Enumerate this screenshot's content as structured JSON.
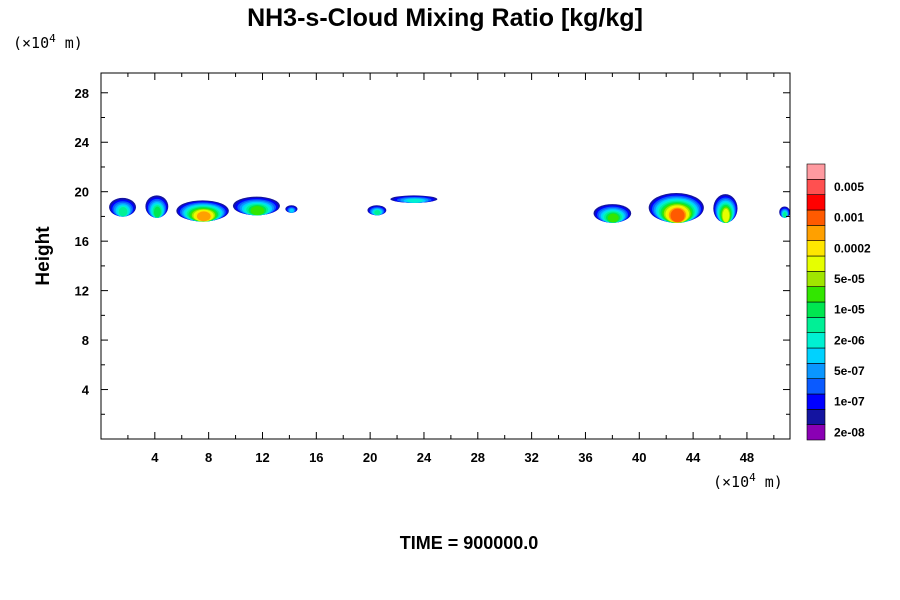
{
  "chart_data": {
    "type": "heatmap",
    "title": "NH3-s-Cloud Mixing Ratio [kg/kg]",
    "ylabel": "Height",
    "x_unit": {
      "prefix": "(×10",
      "exp": "4",
      "suffix": " m)"
    },
    "y_unit": {
      "prefix": "(×10",
      "exp": "4",
      "suffix": " m)"
    },
    "xlim": [
      0,
      51.2
    ],
    "ylim": [
      0,
      29.6
    ],
    "x_ticks": [
      4,
      8,
      12,
      16,
      20,
      24,
      28,
      32,
      36,
      40,
      44,
      48
    ],
    "y_ticks": [
      4,
      8,
      12,
      16,
      20,
      24,
      28
    ],
    "time_label": "TIME = 900000.0",
    "colorbar": {
      "levels": [
        "0.005",
        "0.001",
        "0.0002",
        "5e-05",
        "1e-05",
        "2e-06",
        "5e-07",
        "1e-07",
        "2e-08"
      ],
      "colors": [
        "#8a00b4",
        "#1414a0",
        "#0000ff",
        "#0a5aff",
        "#0a96ff",
        "#00d2ff",
        "#00f0d2",
        "#00f096",
        "#00e650",
        "#32e600",
        "#a0e600",
        "#e6ff00",
        "#ffe600",
        "#ffa000",
        "#ff5a00",
        "#ff0000",
        "#ff5050",
        "#ff9aa0"
      ]
    },
    "clouds": [
      {
        "x0": 0.6,
        "x1": 2.6,
        "ytop": 19.5,
        "ybot": 18.0,
        "max_level": 7
      },
      {
        "x0": 3.3,
        "x1": 5.0,
        "ytop": 19.7,
        "ybot": 17.9,
        "max_level": 8
      },
      {
        "x0": 5.6,
        "x1": 9.5,
        "ytop": 19.3,
        "ybot": 17.6,
        "max_level": 13
      },
      {
        "x0": 9.8,
        "x1": 13.3,
        "ytop": 19.6,
        "ybot": 18.1,
        "max_level": 9
      },
      {
        "x0": 13.7,
        "x1": 14.6,
        "ytop": 18.9,
        "ybot": 18.3,
        "max_level": 5
      },
      {
        "x0": 19.8,
        "x1": 21.2,
        "ytop": 18.9,
        "ybot": 18.1,
        "max_level": 7
      },
      {
        "x0": 21.5,
        "x1": 25.0,
        "ytop": 19.7,
        "ybot": 19.1,
        "max_level": 6
      },
      {
        "x0": 36.6,
        "x1": 39.4,
        "ytop": 19.0,
        "ybot": 17.5,
        "max_level": 9
      },
      {
        "x0": 40.7,
        "x1": 44.8,
        "ytop": 19.9,
        "ybot": 17.5,
        "max_level": 14
      },
      {
        "x0": 45.5,
        "x1": 47.3,
        "ytop": 19.8,
        "ybot": 17.5,
        "max_level": 11
      },
      {
        "x0": 50.4,
        "x1": 51.2,
        "ytop": 18.8,
        "ybot": 17.9,
        "max_level": 7
      }
    ]
  }
}
